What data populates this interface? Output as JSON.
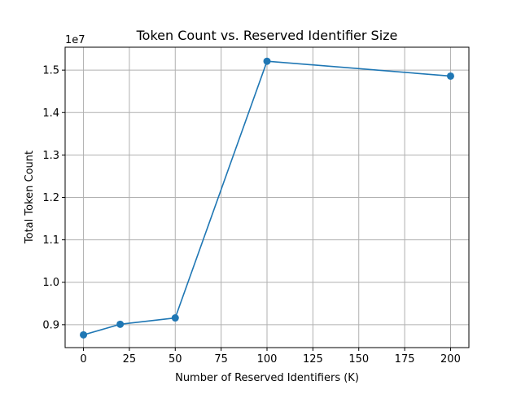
{
  "chart_data": {
    "type": "line",
    "title": "Token Count vs. Reserved Identifier Size",
    "xlabel": "Number of Reserved Identifiers (K)",
    "ylabel": "Total Token Count",
    "y_offset_label": "1e7",
    "y_scale_factor": 10000000,
    "x": [
      0,
      20,
      50,
      100,
      200
    ],
    "series": [
      {
        "values": [
          8760000,
          9010000,
          9160000,
          15210000,
          14860000
        ],
        "color": "#1f77b4",
        "marker": "circle"
      }
    ],
    "xlim": [
      -10,
      210
    ],
    "ylim": [
      8460000,
      15540000
    ],
    "x_ticks": [
      0,
      25,
      50,
      75,
      100,
      125,
      150,
      175,
      200
    ],
    "x_tick_labels": [
      "0",
      "25",
      "50",
      "75",
      "100",
      "125",
      "150",
      "175",
      "200"
    ],
    "y_ticks": [
      9000000,
      10000000,
      11000000,
      12000000,
      13000000,
      14000000,
      15000000
    ],
    "y_tick_labels": [
      "0.9",
      "1.0",
      "1.1",
      "1.2",
      "1.3",
      "1.4",
      "1.5"
    ],
    "grid": true,
    "grid_color": "#b0b0b0",
    "legend": "none"
  }
}
